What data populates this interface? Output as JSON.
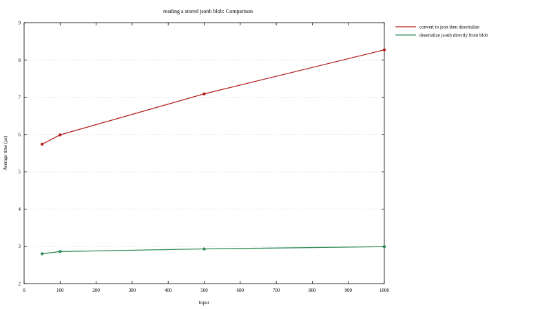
{
  "chart_data": {
    "type": "line",
    "title": "reading a stored jsonb blob: Comparison",
    "xlabel": "Input",
    "ylabel": "Average time (µs)",
    "xlim": [
      0,
      1000
    ],
    "ylim": [
      2,
      9
    ],
    "xticks": [
      "0",
      "100",
      "200",
      "300",
      "400",
      "500",
      "600",
      "700",
      "800",
      "900",
      "1000"
    ],
    "yticks": [
      "2",
      "3",
      "4",
      "5",
      "6",
      "7",
      "8",
      "9"
    ],
    "grid": true,
    "legend_position": "right",
    "series": [
      {
        "name": "convert to json then deserialize",
        "color": "#b22222",
        "x": [
          50,
          100,
          500,
          1000
        ],
        "y": [
          5.74,
          5.99,
          7.09,
          8.27
        ]
      },
      {
        "name": "deserialize jsonb directly from blob",
        "color": "#2e8b57",
        "x": [
          50,
          100,
          500,
          1000
        ],
        "y": [
          2.8,
          2.86,
          2.93,
          2.99
        ]
      }
    ]
  }
}
